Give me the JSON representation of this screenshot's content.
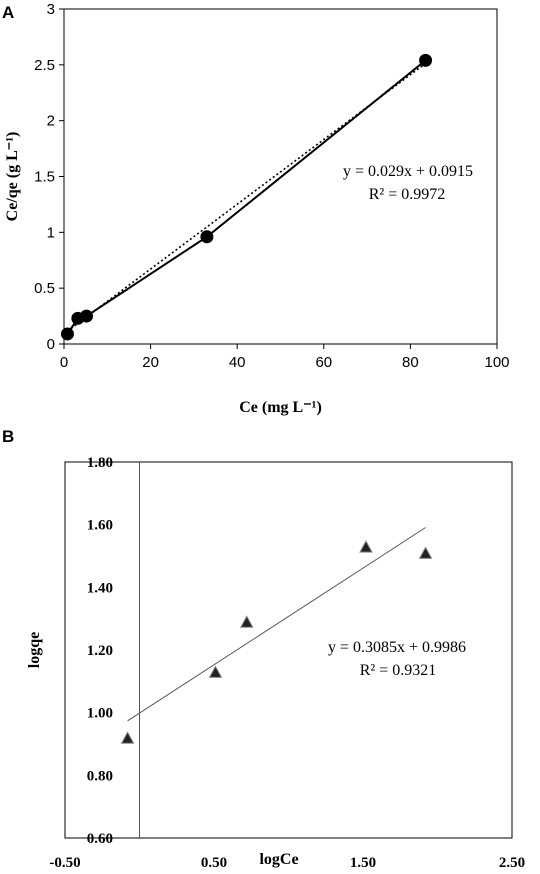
{
  "chart_data": [
    {
      "type": "scatter",
      "panel": "A",
      "xlabel": "Ce (mg L⁻¹)",
      "ylabel": "Ce/qe (g L⁻¹)",
      "xlim": [
        0,
        100
      ],
      "ylim": [
        0,
        3
      ],
      "x_ticks": [
        "0",
        "20",
        "40",
        "60",
        "80",
        "100"
      ],
      "y_ticks": [
        "0",
        "0.5",
        "1",
        "1.5",
        "2",
        "2.5",
        "3"
      ],
      "series": [
        {
          "marker": "circle",
          "x": [
            0.8,
            3.2,
            5.2,
            33.0,
            83.5
          ],
          "y": [
            0.09,
            0.23,
            0.25,
            0.96,
            2.54
          ],
          "connected": true
        }
      ],
      "trendline": {
        "slope": 0.029,
        "intercept": 0.0915,
        "x_range": [
          0.8,
          83.5
        ],
        "style": "dotted"
      },
      "equation": "y = 0.029x + 0.0915",
      "r2": "R² = 0.9972",
      "grid": false
    },
    {
      "type": "scatter",
      "panel": "B",
      "xlabel": "logCe",
      "ylabel": "logqe",
      "xlim": [
        -0.5,
        2.5
      ],
      "ylim": [
        0.6,
        1.8
      ],
      "x_ticks": [
        "-0.50",
        "0.50",
        "1.50",
        "2.50"
      ],
      "y_ticks": [
        "0.60",
        "0.80",
        "1.00",
        "1.20",
        "1.40",
        "1.60",
        "1.80"
      ],
      "series": [
        {
          "marker": "triangle",
          "x": [
            -0.08,
            0.51,
            0.72,
            1.52,
            1.92
          ],
          "y": [
            0.92,
            1.13,
            1.29,
            1.53,
            1.51
          ]
        }
      ],
      "trendline": {
        "slope": 0.3085,
        "intercept": 0.9986,
        "x_range": [
          -0.08,
          1.92
        ],
        "style": "solid"
      },
      "equation": "y = 0.3085x + 0.9986",
      "r2": "R² = 0.9321",
      "grid": false
    }
  ],
  "labels": {
    "panel_a": "A",
    "panel_b": "B"
  }
}
